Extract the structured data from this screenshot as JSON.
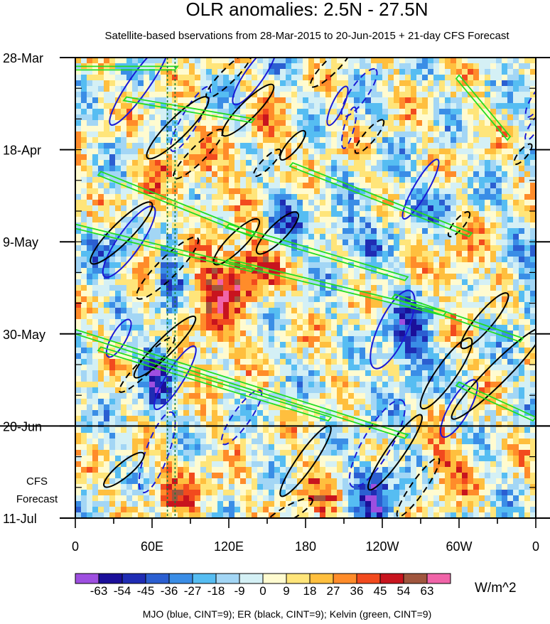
{
  "chart_data": {
    "type": "heatmap",
    "title": "OLR anomalies: 2.5N - 27.5N",
    "subtitle": "Satellite-based bservations from 28-Mar-2015 to 20-Jun-2015 + 21-day CFS Forecast",
    "x_label_note": "longitude",
    "x_ticks": [
      {
        "lon": 0,
        "label": "0"
      },
      {
        "lon": 60,
        "label": "60E"
      },
      {
        "lon": 120,
        "label": "120E"
      },
      {
        "lon": 180,
        "label": "180"
      },
      {
        "lon": 240,
        "label": "120W"
      },
      {
        "lon": 300,
        "label": "60W"
      },
      {
        "lon": 360,
        "label": "0"
      }
    ],
    "x_range": [
      0,
      360
    ],
    "y_ticks": [
      {
        "day": 0,
        "label": "28-Mar"
      },
      {
        "day": 21,
        "label": "18-Apr"
      },
      {
        "day": 42,
        "label": "9-May"
      },
      {
        "day": 63,
        "label": "30-May"
      },
      {
        "day": 84,
        "label": "20-Jun"
      },
      {
        "day": 105,
        "label": "11-Jul"
      }
    ],
    "y_range_days": [
      0,
      105
    ],
    "forecast_start_day": 84,
    "forecast_label_lines": [
      "CFS",
      "Forecast"
    ],
    "reference_longitudes": [
      72,
      78
    ],
    "colorbar": {
      "labels": [
        "-63",
        "-54",
        "-45",
        "-36",
        "-27",
        "-18",
        "-9",
        "0",
        "9",
        "18",
        "27",
        "36",
        "45",
        "54",
        "63"
      ],
      "colors": [
        "#9e4fe0",
        "#1b0f9a",
        "#1f2cb4",
        "#2b5fd1",
        "#3a8de6",
        "#56bdf2",
        "#a3d6f5",
        "#d4f0f5",
        "#fffbd0",
        "#ffe57a",
        "#ffbf3e",
        "#ff8c2a",
        "#f24a1e",
        "#c8141e",
        "#a0563e",
        "#f064a8"
      ],
      "unit": "W/m^2"
    },
    "features": [
      {
        "kind": "MJO",
        "color": "#1a1ad6",
        "cint": 9
      },
      {
        "kind": "ER",
        "color": "#000000",
        "cint": 9
      },
      {
        "kind": "Kelvin",
        "color": "#22dd22",
        "cint": 9
      }
    ],
    "footer": "MJO (blue, CINT=9); ER (black, CINT=9); Kelvin (green, CINT=9)"
  }
}
